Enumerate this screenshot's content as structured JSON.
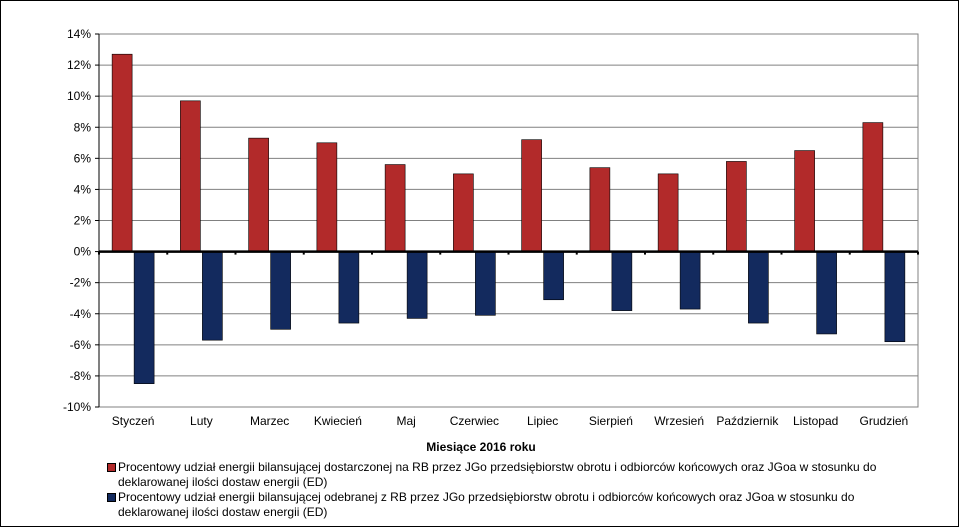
{
  "chart_data": {
    "type": "bar",
    "categories": [
      "Styczeń",
      "Luty",
      "Marzec",
      "Kwiecień",
      "Maj",
      "Czerwiec",
      "Lipiec",
      "Sierpień",
      "Wrzesień",
      "Październik",
      "Listopad",
      "Grudzień"
    ],
    "series": [
      {
        "name": "Procentowy udział energii bilansującej dostarczonej na RB przez JGo przedsiębiorstw obrotu i odbiorców końcowych oraz JGoa w stosunku do deklarowanej ilości dostaw energii (ED)",
        "color": "#b22a2a",
        "values": [
          12.7,
          9.7,
          7.3,
          7.0,
          5.6,
          5.0,
          7.2,
          5.4,
          5.0,
          5.8,
          6.5,
          8.3
        ]
      },
      {
        "name": "Procentowy udział energii bilansującej odebranej z RB przez JGo przedsiębiorstw obrotu i odbiorców końcowych oraz JGoa w stosunku do deklarowanej ilości dostaw energii (ED)",
        "color": "#132a5e",
        "values": [
          -8.5,
          -5.7,
          -5.0,
          -4.6,
          -4.3,
          -4.1,
          -3.1,
          -3.8,
          -3.7,
          -4.6,
          -5.3,
          -5.8
        ]
      }
    ],
    "ytick_labels": [
      "14%",
      "12%",
      "10%",
      "8%",
      "6%",
      "4%",
      "2%",
      "0%",
      "-2%",
      "-4%",
      "-6%",
      "-8%",
      "-10%"
    ],
    "ylim": [
      -10,
      14
    ],
    "ytick_step": 2,
    "xlabel": "Miesiące 2016  roku",
    "ylabel": "",
    "grid": true,
    "legend": "bottom"
  }
}
